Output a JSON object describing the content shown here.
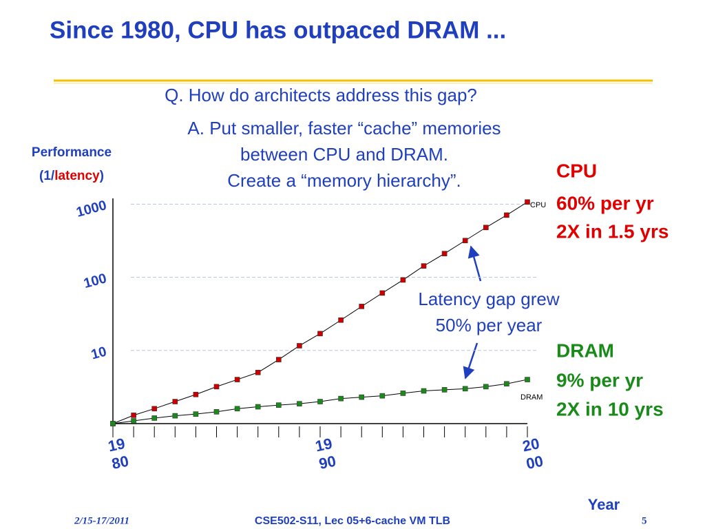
{
  "title": "Since 1980, CPU has outpaced DRAM ...",
  "question": "Q. How do architects address this gap?",
  "answer": [
    "A. Put smaller, faster “cache” memories",
    "between CPU and DRAM.",
    "Create a “memory hierarchy”."
  ],
  "footer": {
    "date": "2/15-17/2011",
    "course": "CSE502-S11, Lec 05+6-cache VM TLB",
    "page": "5"
  },
  "chart_data": {
    "type": "line",
    "ylabel": [
      "Performance",
      "(1/",
      "latency",
      ")"
    ],
    "xlabel": "Year",
    "x": [
      1980,
      1981,
      1982,
      1983,
      1984,
      1985,
      1986,
      1987,
      1988,
      1989,
      1990,
      1991,
      1992,
      1993,
      1994,
      1995,
      1996,
      1997,
      1998,
      1999,
      2000
    ],
    "xlim": [
      1980,
      2000
    ],
    "xticks": [
      {
        "value": 1980,
        "label": "19\n80"
      },
      {
        "value": 1990,
        "label": "19\n90"
      },
      {
        "value": 2000,
        "label": "20\n00"
      }
    ],
    "ylim": [
      1,
      1200
    ],
    "yticks": [
      10,
      100,
      1000
    ],
    "log_scale": true,
    "grid": true,
    "series": [
      {
        "name": "CPU",
        "color": "#cc0000",
        "values": [
          1,
          1.3,
          1.6,
          2,
          2.5,
          3.2,
          4,
          5,
          7.5,
          11.6,
          17,
          26,
          40,
          61,
          92,
          143,
          211,
          318,
          480,
          708,
          1070
        ]
      },
      {
        "name": "DRAM",
        "color": "#1a8a1a",
        "values": [
          1,
          1.09,
          1.19,
          1.28,
          1.35,
          1.45,
          1.6,
          1.7,
          1.79,
          1.87,
          2,
          2.2,
          2.3,
          2.4,
          2.6,
          2.8,
          2.9,
          3,
          3.2,
          3.5,
          4
        ]
      }
    ],
    "annotations": {
      "cpu": [
        "CPU",
        "60% per yr",
        "2X in 1.5 yrs"
      ],
      "dram": [
        "DRAM",
        "9% per yr",
        "2X in 10 yrs"
      ],
      "gap": [
        "Latency gap grew",
        "50% per year"
      ]
    }
  }
}
